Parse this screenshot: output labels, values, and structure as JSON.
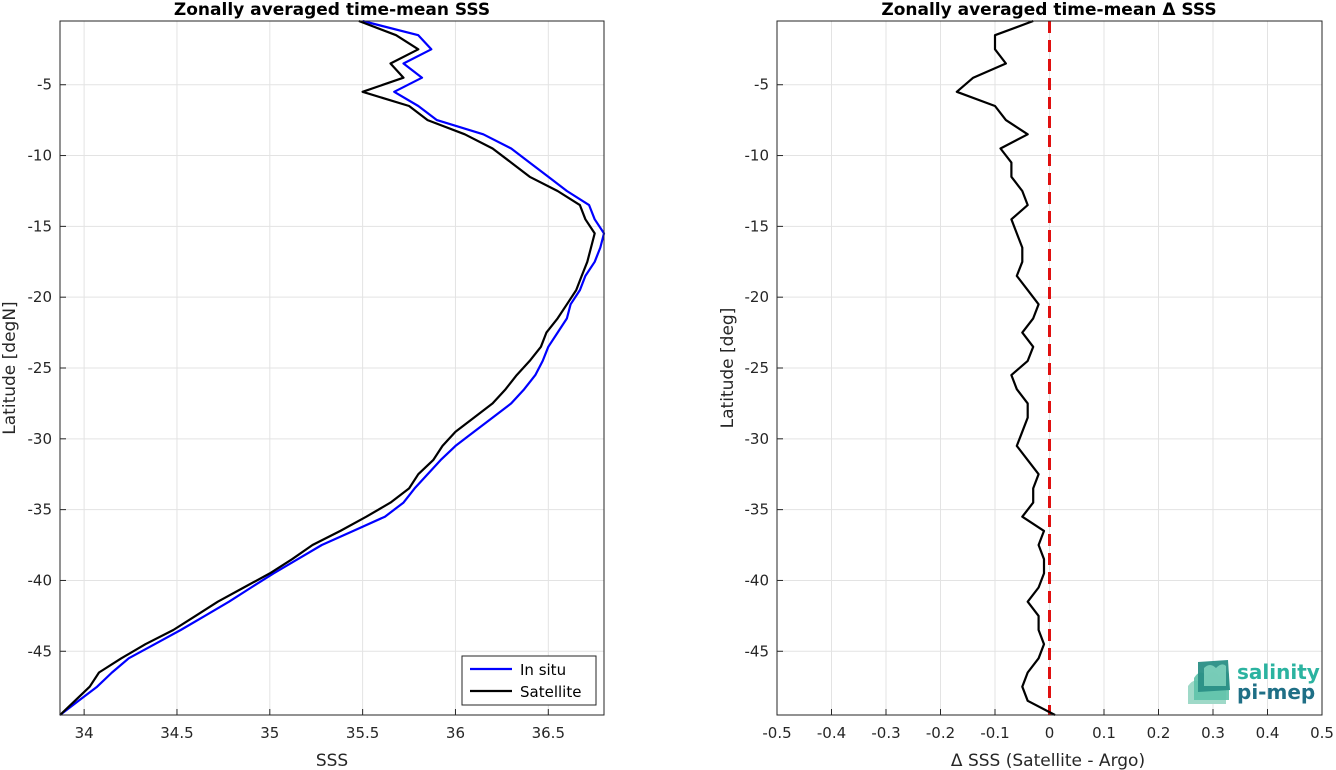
{
  "chart_data": [
    {
      "type": "line",
      "title": "Zonally averaged time-mean SSS",
      "xlabel": "SSS",
      "ylabel": "Latitude [degN]",
      "xlim": [
        33.87,
        36.8
      ],
      "ylim": [
        -49.5,
        -0.5
      ],
      "xticks": [
        34,
        34.5,
        35,
        35.5,
        36,
        36.5
      ],
      "yticks": [
        -5,
        -10,
        -15,
        -20,
        -25,
        -30,
        -35,
        -40,
        -45
      ],
      "grid": true,
      "legend_position": "bottom-right",
      "series": [
        {
          "name": "In situ",
          "color": "#0000ff",
          "points": [
            [
              35.5,
              -0.5
            ],
            [
              35.8,
              -1.5
            ],
            [
              35.87,
              -2.5
            ],
            [
              35.72,
              -3.5
            ],
            [
              35.82,
              -4.5
            ],
            [
              35.67,
              -5.5
            ],
            [
              35.8,
              -6.5
            ],
            [
              35.9,
              -7.5
            ],
            [
              36.15,
              -8.5
            ],
            [
              36.3,
              -9.5
            ],
            [
              36.4,
              -10.5
            ],
            [
              36.5,
              -11.5
            ],
            [
              36.6,
              -12.5
            ],
            [
              36.72,
              -13.5
            ],
            [
              36.75,
              -14.5
            ],
            [
              36.8,
              -15.5
            ],
            [
              36.78,
              -16.5
            ],
            [
              36.75,
              -17.5
            ],
            [
              36.7,
              -18.5
            ],
            [
              36.67,
              -19.5
            ],
            [
              36.62,
              -20.5
            ],
            [
              36.6,
              -21.5
            ],
            [
              36.55,
              -22.5
            ],
            [
              36.5,
              -23.5
            ],
            [
              36.47,
              -24.5
            ],
            [
              36.43,
              -25.5
            ],
            [
              36.37,
              -26.5
            ],
            [
              36.3,
              -27.5
            ],
            [
              36.2,
              -28.5
            ],
            [
              36.1,
              -29.5
            ],
            [
              36.0,
              -30.5
            ],
            [
              35.92,
              -31.5
            ],
            [
              35.85,
              -32.5
            ],
            [
              35.78,
              -33.5
            ],
            [
              35.72,
              -34.5
            ],
            [
              35.62,
              -35.5
            ],
            [
              35.45,
              -36.5
            ],
            [
              35.28,
              -37.5
            ],
            [
              35.15,
              -38.5
            ],
            [
              35.02,
              -39.5
            ],
            [
              34.9,
              -40.5
            ],
            [
              34.78,
              -41.5
            ],
            [
              34.65,
              -42.5
            ],
            [
              34.52,
              -43.5
            ],
            [
              34.38,
              -44.5
            ],
            [
              34.24,
              -45.5
            ],
            [
              34.15,
              -46.5
            ],
            [
              34.07,
              -47.5
            ],
            [
              33.97,
              -48.5
            ],
            [
              33.87,
              -49.5
            ]
          ]
        },
        {
          "name": "Satellite",
          "color": "#000000",
          "points": [
            [
              35.48,
              -0.5
            ],
            [
              35.68,
              -1.5
            ],
            [
              35.8,
              -2.5
            ],
            [
              35.65,
              -3.5
            ],
            [
              35.72,
              -4.5
            ],
            [
              35.5,
              -5.5
            ],
            [
              35.75,
              -6.5
            ],
            [
              35.85,
              -7.5
            ],
            [
              36.05,
              -8.5
            ],
            [
              36.2,
              -9.5
            ],
            [
              36.3,
              -10.5
            ],
            [
              36.4,
              -11.5
            ],
            [
              36.55,
              -12.5
            ],
            [
              36.67,
              -13.5
            ],
            [
              36.7,
              -14.5
            ],
            [
              36.75,
              -15.5
            ],
            [
              36.73,
              -16.5
            ],
            [
              36.71,
              -17.5
            ],
            [
              36.68,
              -18.5
            ],
            [
              36.65,
              -19.5
            ],
            [
              36.6,
              -20.5
            ],
            [
              36.55,
              -21.5
            ],
            [
              36.49,
              -22.5
            ],
            [
              36.46,
              -23.5
            ],
            [
              36.4,
              -24.5
            ],
            [
              36.33,
              -25.5
            ],
            [
              36.27,
              -26.5
            ],
            [
              36.2,
              -27.5
            ],
            [
              36.1,
              -28.5
            ],
            [
              36.0,
              -29.5
            ],
            [
              35.93,
              -30.5
            ],
            [
              35.88,
              -31.5
            ],
            [
              35.8,
              -32.5
            ],
            [
              35.75,
              -33.5
            ],
            [
              35.65,
              -34.5
            ],
            [
              35.52,
              -35.5
            ],
            [
              35.38,
              -36.5
            ],
            [
              35.23,
              -37.5
            ],
            [
              35.12,
              -38.5
            ],
            [
              35.0,
              -39.5
            ],
            [
              34.86,
              -40.5
            ],
            [
              34.72,
              -41.5
            ],
            [
              34.6,
              -42.5
            ],
            [
              34.48,
              -43.5
            ],
            [
              34.33,
              -44.5
            ],
            [
              34.2,
              -45.5
            ],
            [
              34.08,
              -46.5
            ],
            [
              34.03,
              -47.5
            ],
            [
              33.95,
              -48.5
            ],
            [
              33.87,
              -49.5
            ]
          ]
        }
      ]
    },
    {
      "type": "line",
      "title": "Zonally averaged time-mean Δ SSS",
      "xlabel": "Δ SSS (Satellite - Argo)",
      "ylabel": "Latitude [deg]",
      "xlim": [
        -0.5,
        0.5
      ],
      "ylim": [
        -49.5,
        -0.5
      ],
      "xticks": [
        -0.5,
        -0.4,
        -0.3,
        -0.2,
        -0.1,
        0,
        0.1,
        0.2,
        0.3,
        0.4,
        0.5
      ],
      "yticks": [
        -5,
        -10,
        -15,
        -20,
        -25,
        -30,
        -35,
        -40,
        -45
      ],
      "grid": true,
      "series": [
        {
          "color": "#000000",
          "points": [
            [
              -0.03,
              -0.5
            ],
            [
              -0.1,
              -1.5
            ],
            [
              -0.1,
              -2.5
            ],
            [
              -0.08,
              -3.5
            ],
            [
              -0.14,
              -4.5
            ],
            [
              -0.17,
              -5.5
            ],
            [
              -0.1,
              -6.5
            ],
            [
              -0.08,
              -7.5
            ],
            [
              -0.04,
              -8.5
            ],
            [
              -0.09,
              -9.5
            ],
            [
              -0.07,
              -10.5
            ],
            [
              -0.07,
              -11.5
            ],
            [
              -0.05,
              -12.5
            ],
            [
              -0.04,
              -13.5
            ],
            [
              -0.07,
              -14.5
            ],
            [
              -0.06,
              -15.5
            ],
            [
              -0.05,
              -16.5
            ],
            [
              -0.05,
              -17.5
            ],
            [
              -0.06,
              -18.5
            ],
            [
              -0.04,
              -19.5
            ],
            [
              -0.02,
              -20.5
            ],
            [
              -0.03,
              -21.5
            ],
            [
              -0.05,
              -22.5
            ],
            [
              -0.03,
              -23.5
            ],
            [
              -0.04,
              -24.5
            ],
            [
              -0.07,
              -25.5
            ],
            [
              -0.06,
              -26.5
            ],
            [
              -0.04,
              -27.5
            ],
            [
              -0.04,
              -28.5
            ],
            [
              -0.05,
              -29.5
            ],
            [
              -0.06,
              -30.5
            ],
            [
              -0.04,
              -31.5
            ],
            [
              -0.02,
              -32.5
            ],
            [
              -0.03,
              -33.5
            ],
            [
              -0.03,
              -34.5
            ],
            [
              -0.05,
              -35.5
            ],
            [
              -0.01,
              -36.5
            ],
            [
              -0.02,
              -37.5
            ],
            [
              -0.01,
              -38.5
            ],
            [
              -0.01,
              -39.5
            ],
            [
              -0.02,
              -40.5
            ],
            [
              -0.04,
              -41.5
            ],
            [
              -0.02,
              -42.5
            ],
            [
              -0.02,
              -43.5
            ],
            [
              -0.01,
              -44.5
            ],
            [
              -0.02,
              -45.5
            ],
            [
              -0.04,
              -46.5
            ],
            [
              -0.05,
              -47.5
            ],
            [
              -0.04,
              -48.5
            ],
            [
              0.01,
              -49.5
            ]
          ]
        }
      ],
      "reference_line": {
        "x": 0,
        "color": "#e01010",
        "style": "dashed"
      }
    }
  ],
  "logo": {
    "line1": "salinity",
    "line2": "pi-mep"
  }
}
